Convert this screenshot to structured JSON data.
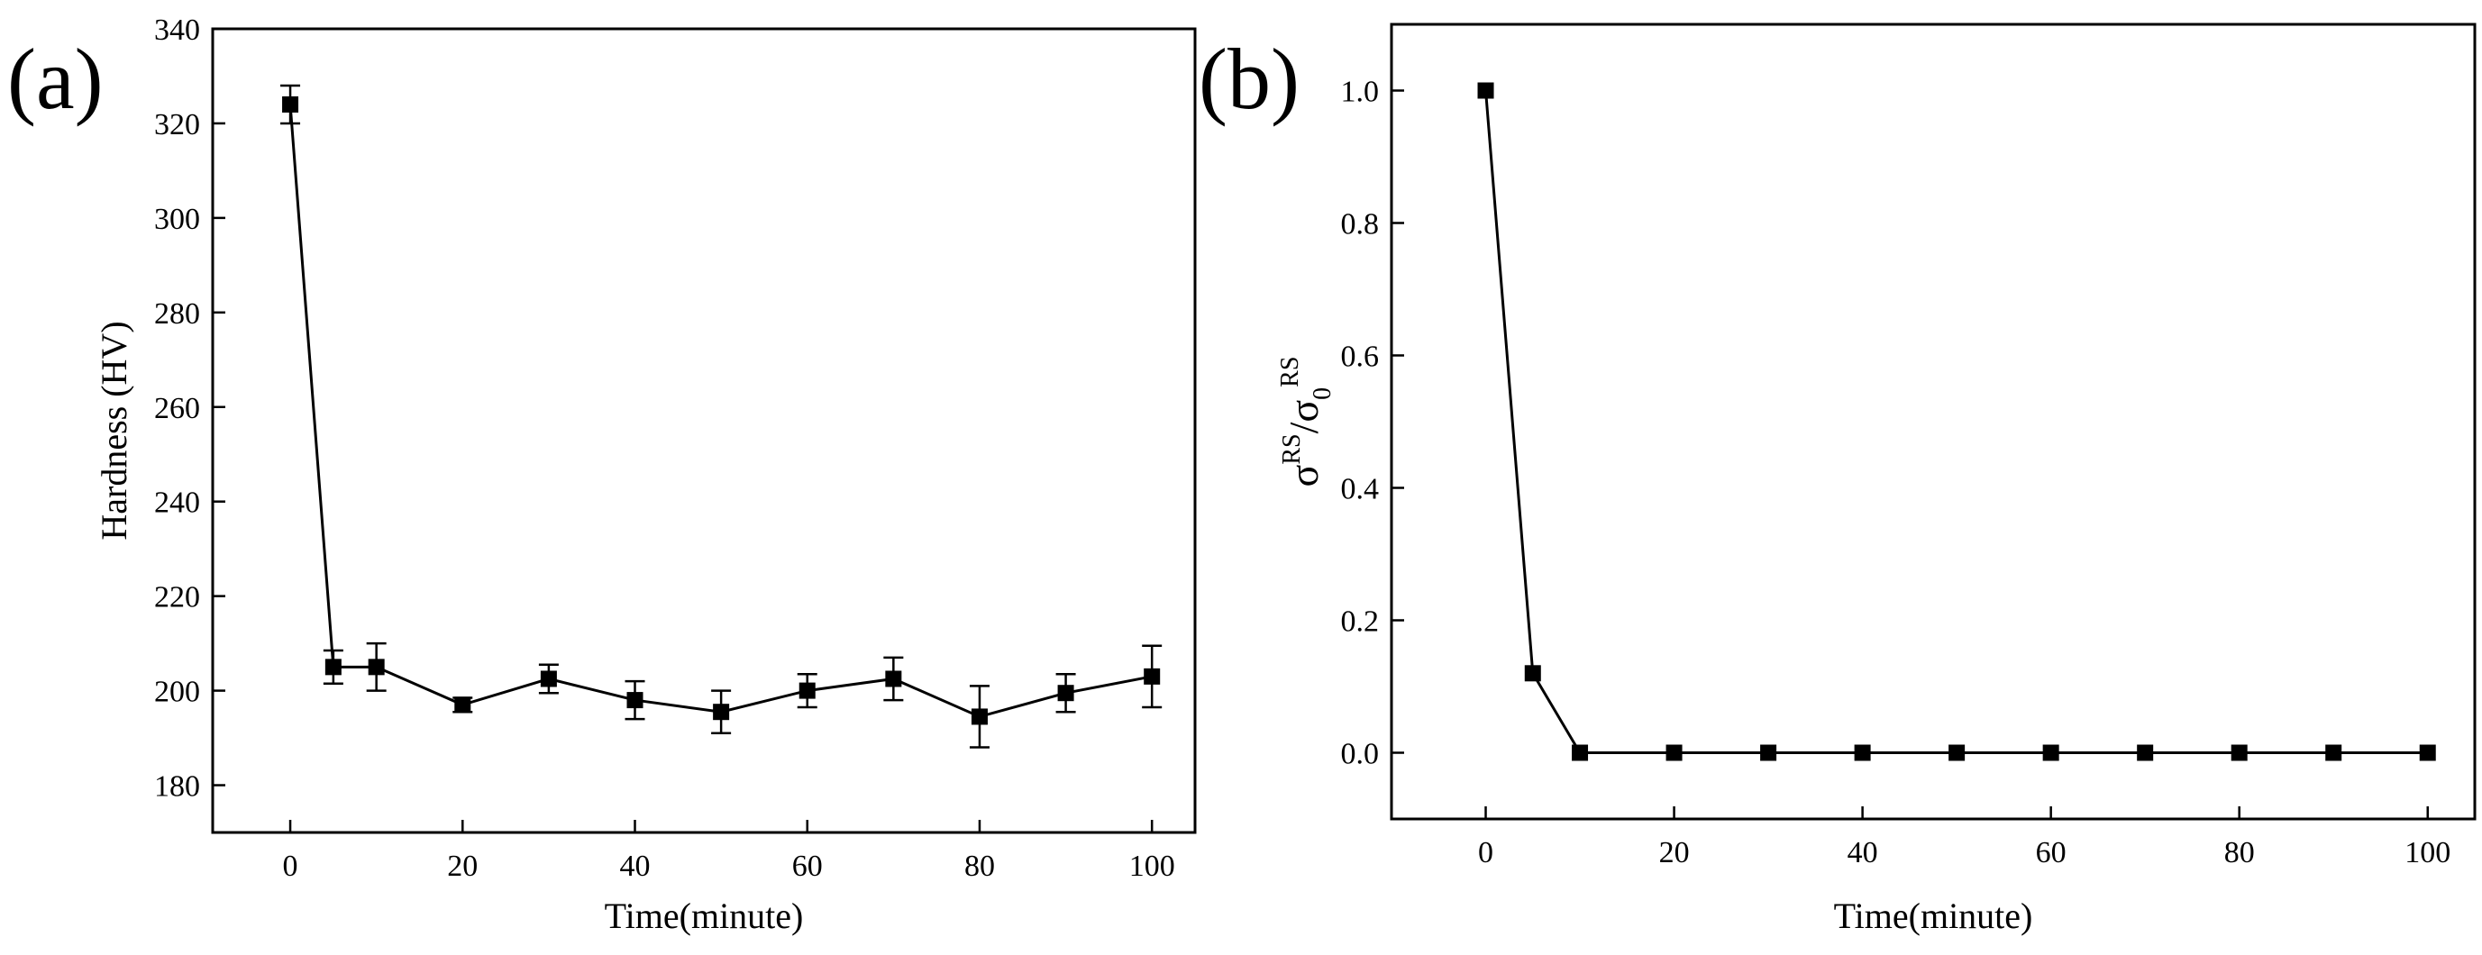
{
  "chart_data": [
    {
      "panel": "(a)",
      "type": "line",
      "title": "",
      "xlabel": "Time(minute)",
      "ylabel": "Hardness (HV)",
      "xlim": [
        -9,
        105
      ],
      "ylim": [
        170,
        340
      ],
      "xticks": [
        0,
        20,
        40,
        60,
        80,
        100
      ],
      "yticks": [
        180,
        200,
        220,
        240,
        260,
        280,
        300,
        320,
        340
      ],
      "ytick_labels": [
        "180",
        "200",
        "220",
        "240",
        "260",
        "280",
        "300",
        "320",
        "340"
      ],
      "x": [
        0,
        5,
        10,
        20,
        30,
        40,
        50,
        60,
        70,
        80,
        90,
        100
      ],
      "values": [
        324,
        205,
        205,
        197,
        202.5,
        198,
        195.5,
        200,
        202.5,
        194.5,
        199.5,
        203
      ],
      "errors": [
        4,
        3.5,
        5,
        1.5,
        3,
        4,
        4.5,
        3.5,
        4.5,
        6.5,
        4,
        6.5
      ],
      "marker": "square"
    },
    {
      "panel": "(b)",
      "type": "line",
      "title": "",
      "xlabel": "Time(minute)",
      "ylabel": "σRS/σ0RS",
      "ylabel_parts": {
        "sym1": "σ",
        "sup1": "RS",
        "slash": "/",
        "sym2": "σ",
        "sub2": "0",
        "sup2": "RS"
      },
      "xlim": [
        -10,
        105
      ],
      "ylim": [
        -0.1,
        1.1
      ],
      "xticks": [
        0,
        20,
        40,
        60,
        80,
        100
      ],
      "yticks": [
        0,
        0.2,
        0.4,
        0.6,
        0.8,
        1.0
      ],
      "ytick_labels": [
        "0.0",
        "0.2",
        "0.4",
        "0.6",
        "0.8",
        "1.0"
      ],
      "x": [
        0,
        5,
        10,
        20,
        30,
        40,
        50,
        60,
        70,
        80,
        90,
        100
      ],
      "values": [
        1.0,
        0.12,
        0,
        0,
        0,
        0,
        0,
        0,
        0,
        0,
        0,
        0
      ],
      "marker": "square"
    }
  ]
}
